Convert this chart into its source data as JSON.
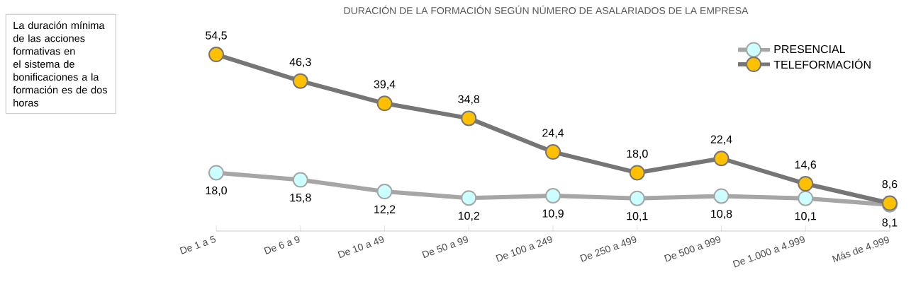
{
  "chart_data": {
    "type": "line",
    "title": "DURACIÓN DE LA FORMACIÓN SEGÚN NÚMERO DE ASALARIADOS DE LA EMPRESA",
    "categories": [
      "De 1 a 5",
      "De 6 a 9",
      "De 10 a 49",
      "De 50 a 99",
      "De 100 a 249",
      "De 250 a 499",
      "De 500 a 999",
      "De 1.000 a 4.999",
      "Más de 4.999"
    ],
    "series": [
      {
        "name": "PRESENCIAL",
        "color": "#a6a6a6",
        "values": [
          18.0,
          15.8,
          12.2,
          10.2,
          10.9,
          10.1,
          10.8,
          10.1,
          8.1
        ],
        "value_labels": [
          "18,0",
          "15,8",
          "12,2",
          "10,2",
          "10,9",
          "10,1",
          "10,8",
          "10,1",
          "8,1"
        ]
      },
      {
        "name": "TELEFORMACIÓN",
        "color": "#767676",
        "values": [
          54.5,
          46.3,
          39.4,
          34.8,
          24.4,
          18.0,
          22.4,
          14.6,
          8.6
        ],
        "value_labels": [
          "54,5",
          "46,3",
          "39,4",
          "34,8",
          "24,4",
          "18,0",
          "22,4",
          "14,6",
          "8,6"
        ]
      }
    ],
    "annotations": [
      "La duración mínima de las acciones formativas en el sistema de bonificaciones a la formación es de dos horas"
    ],
    "marker": "circle",
    "line_style": "solid",
    "legend": "top right"
  }
}
